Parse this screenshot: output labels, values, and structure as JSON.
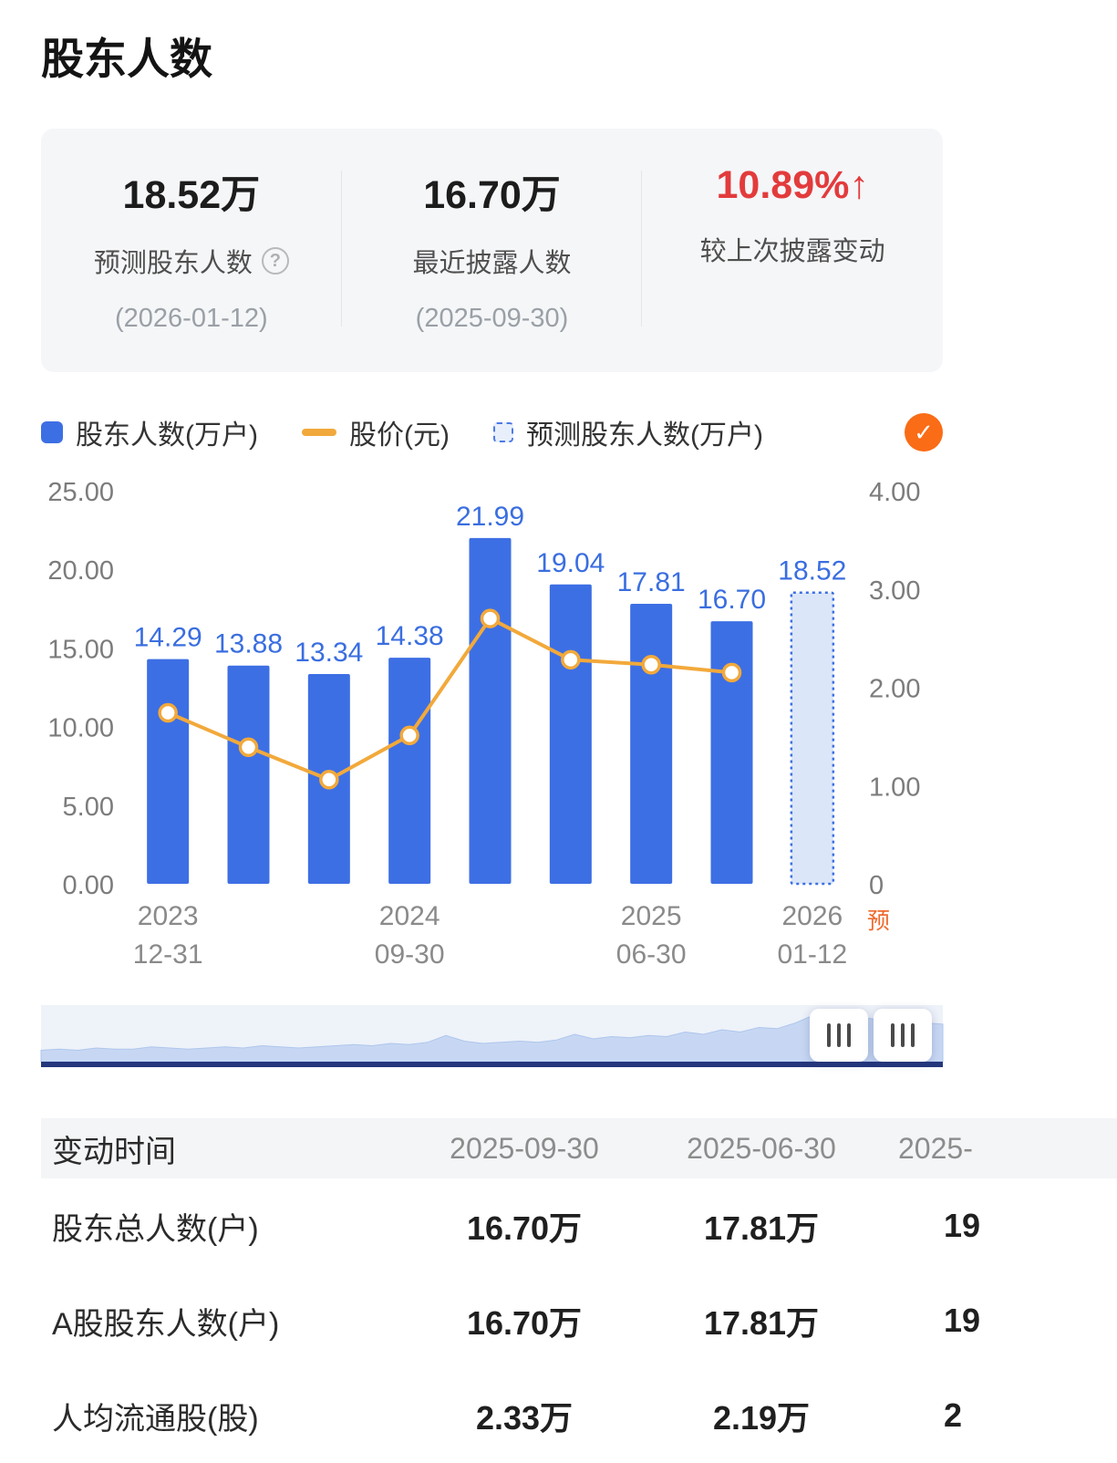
{
  "page": {
    "title": "股东人数"
  },
  "summary": {
    "items": [
      {
        "value": "18.52万",
        "label": "预测股东人数",
        "help": "?",
        "sub": "(2026-01-12)"
      },
      {
        "value": "16.70万",
        "label": "最近披露人数",
        "sub": "(2025-09-30)"
      },
      {
        "value": "10.89%",
        "arrow": "↑",
        "label": "较上次披露变动"
      }
    ]
  },
  "legend": {
    "items": [
      {
        "label": "股东人数(万户)"
      },
      {
        "label": "股价(元)"
      },
      {
        "label": "预测股东人数(万户)"
      }
    ],
    "check_icon": "✓"
  },
  "chart_data": {
    "type": "bar",
    "title": "股东人数",
    "categories": [
      "2023-12-31",
      "",
      "",
      "2024-09-30",
      "",
      "",
      "2025-06-30",
      "",
      "2026-01-12"
    ],
    "series": [
      {
        "name": "股东人数(万户)",
        "type": "bar",
        "values": [
          14.29,
          13.88,
          13.34,
          14.38,
          21.99,
          19.04,
          17.81,
          16.7,
          null
        ],
        "color": "#3d6fe4"
      },
      {
        "name": "预测股东人数(万户)",
        "type": "bar",
        "style": "forecast",
        "values": [
          null,
          null,
          null,
          null,
          null,
          null,
          null,
          null,
          18.52
        ],
        "color": "#3d6fe4",
        "fill": "#dbe7f8"
      },
      {
        "name": "股价(元)",
        "type": "line",
        "axis": "right",
        "values": [
          1.74,
          1.39,
          1.06,
          1.51,
          2.7,
          2.28,
          2.23,
          2.15,
          null
        ],
        "color": "#f2a93b"
      }
    ],
    "left_axis": {
      "min": 0,
      "max": 25,
      "ticks": [
        0,
        5,
        10,
        15,
        20,
        25
      ],
      "labels": [
        "0.00",
        "5.00",
        "10.00",
        "15.00",
        "20.00",
        "25.00"
      ]
    },
    "right_axis": {
      "min": 0,
      "max": 4,
      "ticks": [
        0,
        1,
        2,
        3,
        4
      ],
      "labels": [
        "0",
        "1.00",
        "2.00",
        "3.00",
        "4.00"
      ]
    },
    "x_ticks": [
      {
        "index": 0,
        "line1": "2023",
        "line2": "12-31"
      },
      {
        "index": 3,
        "line1": "2024",
        "line2": "09-30"
      },
      {
        "index": 6,
        "line1": "2025",
        "line2": "06-30"
      },
      {
        "index": 8,
        "line1": "2026",
        "line2": "01-12",
        "tag": "预"
      }
    ],
    "legend_position": "top",
    "grid": false
  },
  "navigator": {
    "points": [
      10,
      11,
      10,
      12,
      11,
      11,
      13,
      12,
      11,
      12,
      13,
      12,
      14,
      13,
      12,
      13,
      14,
      15,
      14,
      16,
      15,
      17,
      23,
      18,
      16,
      17,
      18,
      17,
      19,
      24,
      20,
      22,
      21,
      23,
      22,
      26,
      24,
      28,
      26,
      30,
      29,
      34,
      41,
      37,
      34,
      38,
      35,
      33,
      34,
      33
    ]
  },
  "table": {
    "header": [
      "变动时间",
      "2025-09-30",
      "2025-06-30",
      "2025-"
    ],
    "rows": [
      {
        "label": "股东总人数(户)",
        "values": [
          "16.70万",
          "17.81万",
          "19"
        ]
      },
      {
        "label": "A股股东人数(户)",
        "values": [
          "16.70万",
          "17.81万",
          "19"
        ]
      },
      {
        "label": "人均流通股(股)",
        "values": [
          "2.33万",
          "2.19万",
          "2"
        ]
      }
    ]
  }
}
